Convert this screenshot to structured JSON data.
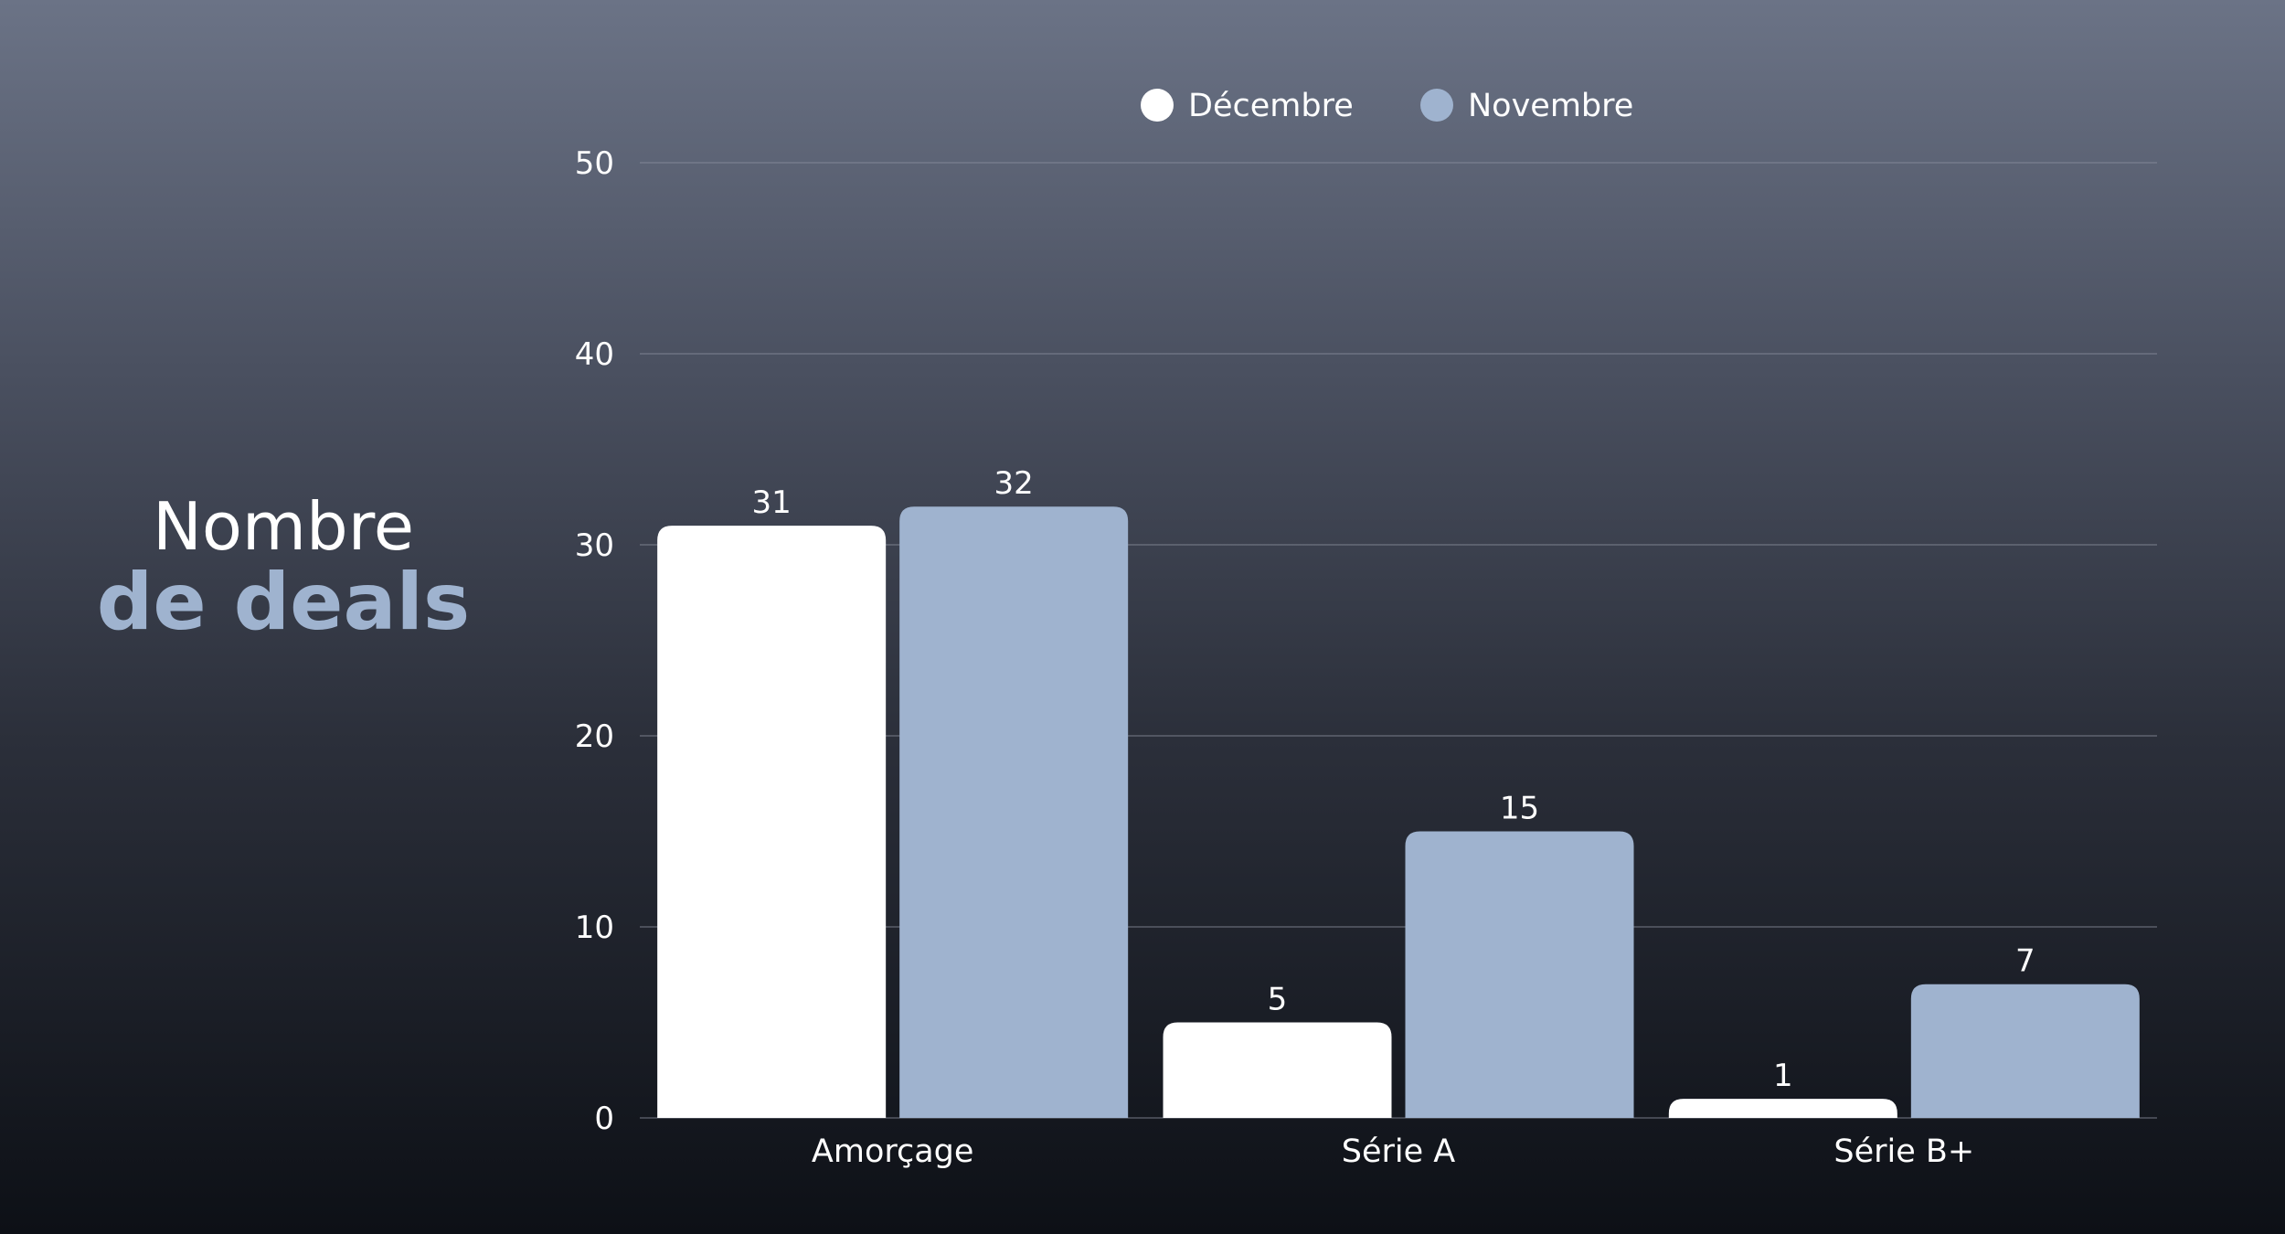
{
  "heading": {
    "line1": "Nombre",
    "line2": "de deals"
  },
  "colors": {
    "decembre": "#ffffff",
    "novembre": "#9fb3cf",
    "grid": "#8a8f9c",
    "accent": "#9fb3cf"
  },
  "chart_data": {
    "type": "bar",
    "categories": [
      "Amorçage",
      "Série A",
      "Série B+"
    ],
    "series": [
      {
        "name": "Décembre",
        "values": [
          31,
          5,
          1
        ],
        "color": "#ffffff"
      },
      {
        "name": "Novembre",
        "values": [
          32,
          15,
          7
        ],
        "color": "#9fb3cf"
      }
    ],
    "ylim": [
      0,
      50
    ],
    "yticks": [
      0,
      10,
      20,
      30,
      40,
      50
    ],
    "grid": true,
    "legend": "top-center",
    "data_labels": true
  }
}
